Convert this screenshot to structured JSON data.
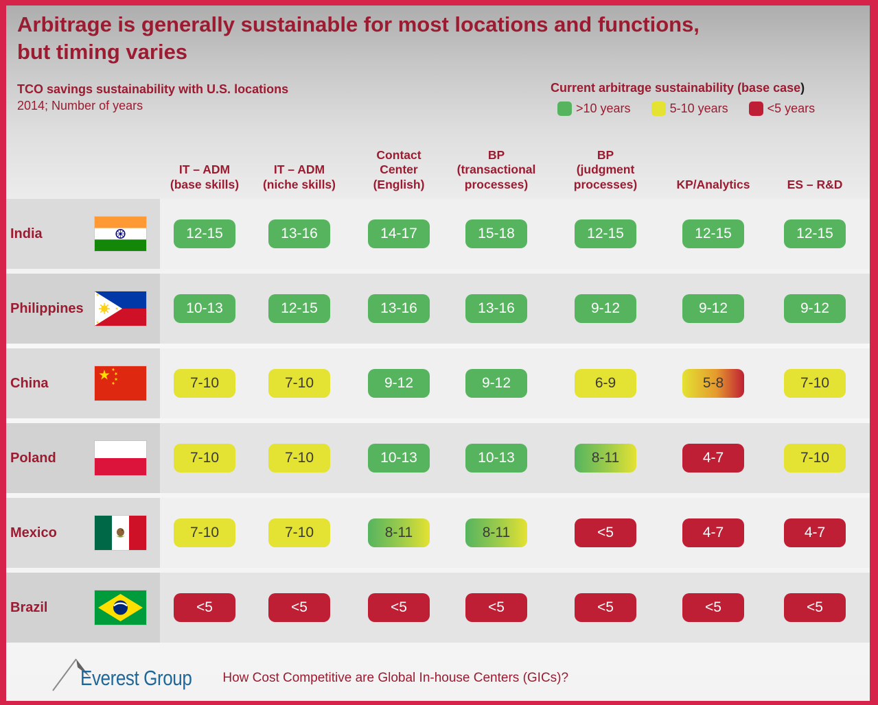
{
  "colors": {
    "frame_pink": "#D62349",
    "maroon_text": "#9B1B31",
    "green": "#56B45F",
    "yellow": "#E4E232",
    "red": "#BF1F34",
    "logo_blue": "#1F6799"
  },
  "title": {
    "line1": "Arbitrage is generally sustainable for most locations and functions,",
    "line2": "but timing varies"
  },
  "subtitle": {
    "line1": "TCO savings sustainability with U.S. locations",
    "line2": "2014; Number of years"
  },
  "legend": {
    "title": "Current arbitrage sustainability (base case",
    "title_suffix": ")",
    "items": [
      {
        "label": ">10 years",
        "color": "#56B45F",
        "icon": "green-swatch-icon"
      },
      {
        "label": "5-10 years",
        "color": "#E4E232",
        "icon": "yellow-swatch-icon"
      },
      {
        "label": "<5 years",
        "color": "#BF1F34",
        "icon": "red-swatch-icon"
      }
    ]
  },
  "table": {
    "columns": [
      "IT – ADM\n(base skills)",
      "IT – ADM\n(niche skills)",
      "Contact\nCenter\n(English)",
      "BP\n(transactional\nprocesses)",
      "BP\n(judgment\nprocesses)",
      "KP/Analytics",
      "ES – R&D"
    ],
    "rows": [
      {
        "country": "India",
        "flag": "india",
        "cells": [
          {
            "value": "12-15",
            "type": "green"
          },
          {
            "value": "13-16",
            "type": "green"
          },
          {
            "value": "14-17",
            "type": "green"
          },
          {
            "value": "15-18",
            "type": "green"
          },
          {
            "value": "12-15",
            "type": "green"
          },
          {
            "value": "12-15",
            "type": "green"
          },
          {
            "value": "12-15",
            "type": "green"
          }
        ]
      },
      {
        "country": "Philippines",
        "flag": "philippines",
        "cells": [
          {
            "value": "10-13",
            "type": "green"
          },
          {
            "value": "12-15",
            "type": "green"
          },
          {
            "value": "13-16",
            "type": "green"
          },
          {
            "value": "13-16",
            "type": "green"
          },
          {
            "value": "9-12",
            "type": "green"
          },
          {
            "value": "9-12",
            "type": "green"
          },
          {
            "value": "9-12",
            "type": "green"
          }
        ]
      },
      {
        "country": "China",
        "flag": "china",
        "cells": [
          {
            "value": "7-10",
            "type": "yellow"
          },
          {
            "value": "7-10",
            "type": "yellow"
          },
          {
            "value": "9-12",
            "type": "green"
          },
          {
            "value": "9-12",
            "type": "green"
          },
          {
            "value": "6-9",
            "type": "yellow"
          },
          {
            "value": "5-8",
            "type": "yellow-red"
          },
          {
            "value": "7-10",
            "type": "yellow"
          }
        ]
      },
      {
        "country": "Poland",
        "flag": "poland",
        "cells": [
          {
            "value": "7-10",
            "type": "yellow"
          },
          {
            "value": "7-10",
            "type": "yellow"
          },
          {
            "value": "10-13",
            "type": "green"
          },
          {
            "value": "10-13",
            "type": "green"
          },
          {
            "value": "8-11",
            "type": "green-yellow"
          },
          {
            "value": "4-7",
            "type": "red"
          },
          {
            "value": "7-10",
            "type": "yellow"
          }
        ]
      },
      {
        "country": "Mexico",
        "flag": "mexico",
        "cells": [
          {
            "value": "7-10",
            "type": "yellow"
          },
          {
            "value": "7-10",
            "type": "yellow"
          },
          {
            "value": "8-11",
            "type": "green-yellow"
          },
          {
            "value": "8-11",
            "type": "green-yellow"
          },
          {
            "value": "<5",
            "type": "red"
          },
          {
            "value": "4-7",
            "type": "red"
          },
          {
            "value": "4-7",
            "type": "red"
          }
        ]
      },
      {
        "country": "Brazil",
        "flag": "brazil",
        "cells": [
          {
            "value": "<5",
            "type": "red"
          },
          {
            "value": "<5",
            "type": "red"
          },
          {
            "value": "<5",
            "type": "red"
          },
          {
            "value": "<5",
            "type": "red"
          },
          {
            "value": "<5",
            "type": "red"
          },
          {
            "value": "<5",
            "type": "red"
          },
          {
            "value": "<5",
            "type": "red"
          }
        ]
      }
    ]
  },
  "footer": {
    "logo_text": "Everest Group",
    "caption": "How Cost Competitive are Global In-house Centers (GICs)?"
  }
}
